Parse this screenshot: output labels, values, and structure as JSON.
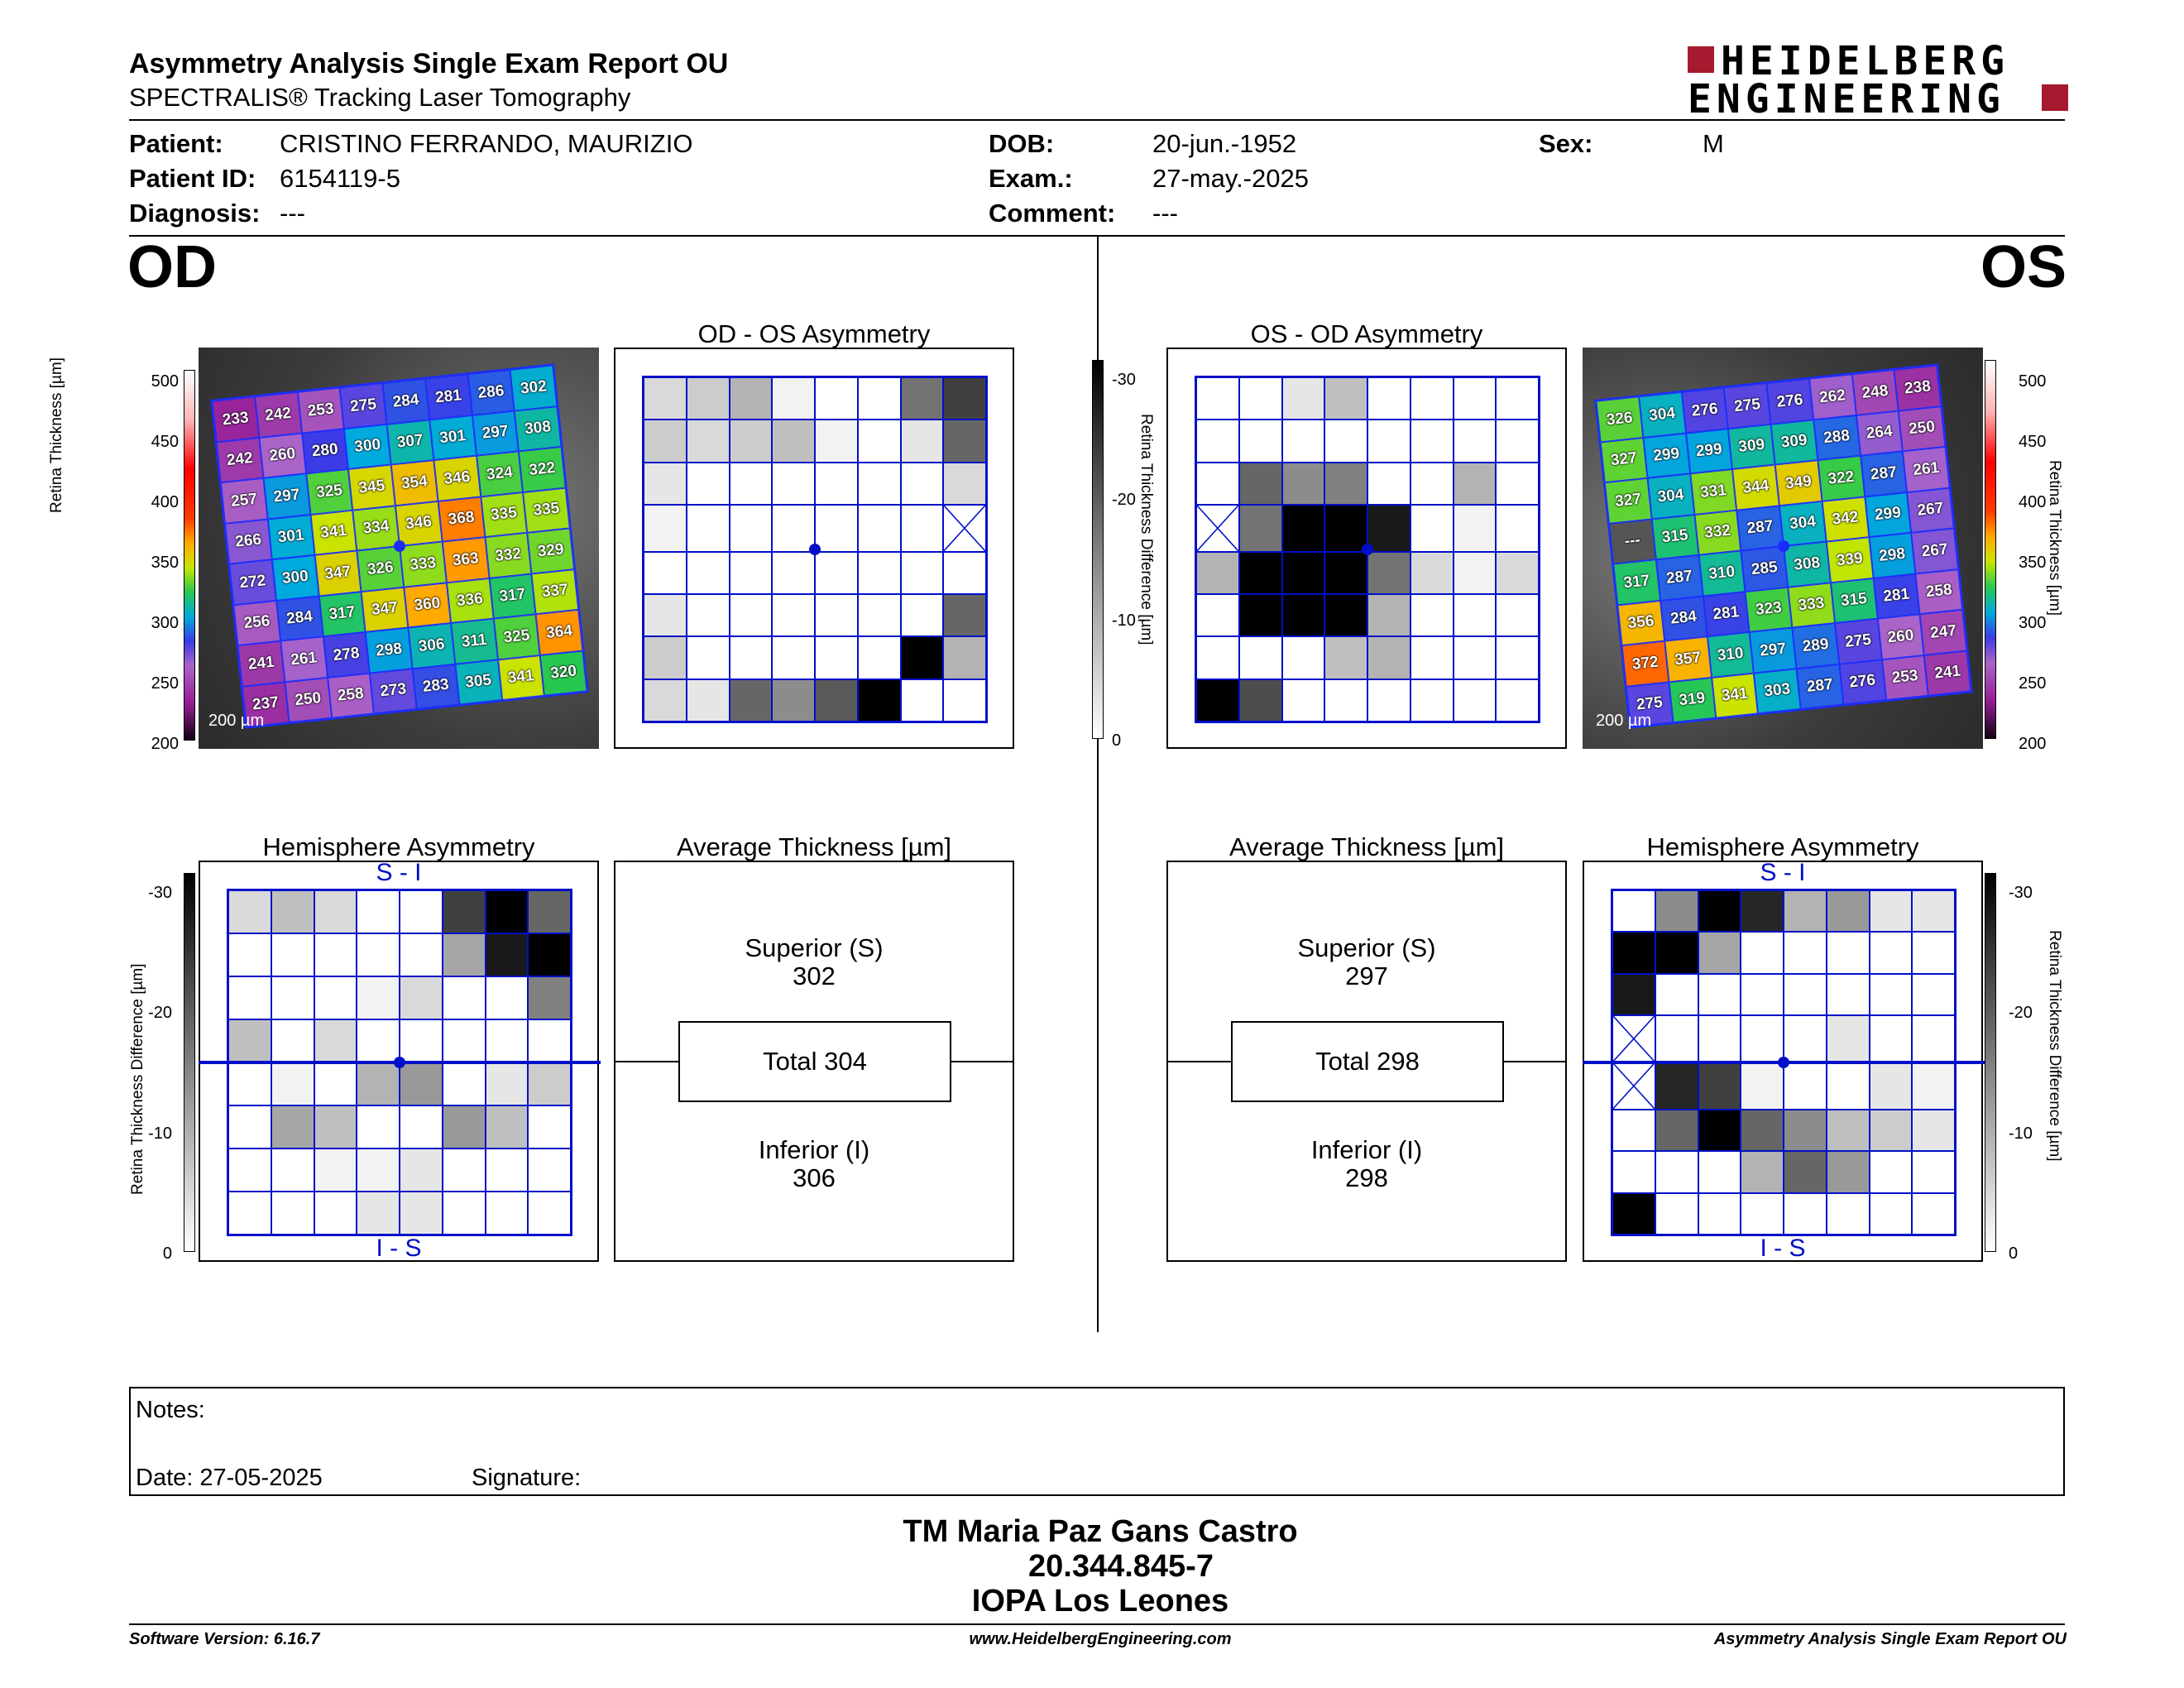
{
  "header": {
    "title": "Asymmetry Analysis Single Exam Report OU",
    "subtitle": "SPECTRALIS® Tracking Laser Tomography",
    "brand_line1": "HEIDELBERG",
    "brand_line2": "ENGINEERING"
  },
  "patient": {
    "patient_label": "Patient:",
    "patient_value": "CRISTINO FERRANDO, MAURIZIO",
    "id_label": "Patient ID:",
    "id_value": "6154119-5",
    "diagnosis_label": "Diagnosis:",
    "diagnosis_value": "---",
    "dob_label": "DOB:",
    "dob_value": "20-jun.-1952",
    "exam_label": "Exam.:",
    "exam_value": "27-may.-2025",
    "comment_label": "Comment:",
    "comment_value": "---",
    "sex_label": "Sex:",
    "sex_value": "M"
  },
  "od": {
    "eye_label": "OD",
    "asym_title": "OD - OS Asymmetry",
    "hemi_title": "Hemisphere Asymmetry",
    "avg_title": "Average Thickness [µm]",
    "superior_label": "Superior (S)",
    "superior_value": "302",
    "total_label": "Total 304",
    "inferior_label": "Inferior (I)",
    "inferior_value": "306",
    "scale": "200 µm",
    "thickness": [
      [
        233,
        242,
        253,
        275,
        284,
        281,
        286,
        302
      ],
      [
        242,
        260,
        280,
        300,
        307,
        301,
        297,
        308
      ],
      [
        257,
        297,
        325,
        345,
        354,
        346,
        324,
        322
      ],
      [
        266,
        301,
        341,
        334,
        346,
        368,
        335,
        335
      ],
      [
        272,
        300,
        347,
        326,
        333,
        363,
        332,
        329
      ],
      [
        256,
        284,
        317,
        347,
        360,
        336,
        317,
        337
      ],
      [
        241,
        261,
        278,
        298,
        306,
        311,
        325,
        364
      ],
      [
        237,
        250,
        258,
        273,
        283,
        305,
        341,
        320
      ]
    ],
    "asym_gray": [
      [
        0.15,
        0.2,
        0.3,
        0.05,
        0,
        0,
        0.55,
        0.75
      ],
      [
        0.2,
        0.15,
        0.2,
        0.25,
        0.05,
        0,
        0.1,
        0.6
      ],
      [
        0.1,
        0,
        0,
        0,
        0,
        0,
        0,
        0.15
      ],
      [
        0.05,
        0,
        0,
        0,
        0,
        0,
        0,
        -1
      ],
      [
        0,
        0,
        0,
        0,
        0,
        0,
        0,
        0
      ],
      [
        0.1,
        0,
        0,
        0,
        0,
        0,
        0,
        0.6
      ],
      [
        0.2,
        0,
        0,
        0,
        0,
        0,
        1,
        0.3
      ],
      [
        0.15,
        0.1,
        0.6,
        0.45,
        0.65,
        1,
        0,
        0
      ]
    ],
    "hemi_gray": [
      [
        0.15,
        0.25,
        0.15,
        0,
        0,
        0.75,
        1,
        0.6
      ],
      [
        0,
        0,
        0,
        0,
        0,
        0.35,
        0.9,
        1
      ],
      [
        0,
        0,
        0,
        0.05,
        0.15,
        0,
        0,
        0.5
      ],
      [
        0.25,
        0,
        0.15,
        0,
        0,
        0,
        0,
        0
      ],
      [
        0,
        0.05,
        0,
        0.3,
        0.4,
        0,
        0.1,
        0.2
      ],
      [
        0,
        0.35,
        0.25,
        0,
        0,
        0.4,
        0.25,
        0
      ],
      [
        0,
        0,
        0.05,
        0.05,
        0.1,
        0,
        0,
        0
      ],
      [
        0,
        0,
        0,
        0.1,
        0.1,
        0,
        0,
        0
      ]
    ]
  },
  "os": {
    "eye_label": "OS",
    "asym_title": "OS - OD Asymmetry",
    "hemi_title": "Hemisphere Asymmetry",
    "avg_title": "Average Thickness [µm]",
    "superior_label": "Superior (S)",
    "superior_value": "297",
    "total_label": "Total 298",
    "inferior_label": "Inferior (I)",
    "inferior_value": "298",
    "scale": "200 µm",
    "thickness": [
      [
        326,
        304,
        276,
        275,
        276,
        262,
        248,
        238
      ],
      [
        327,
        299,
        299,
        309,
        309,
        288,
        264,
        250
      ],
      [
        327,
        304,
        331,
        344,
        349,
        322,
        287,
        261
      ],
      [
        "---",
        315,
        332,
        287,
        304,
        342,
        299,
        267
      ],
      [
        317,
        287,
        310,
        285,
        308,
        339,
        298,
        267
      ],
      [
        356,
        284,
        281,
        323,
        333,
        315,
        281,
        258
      ],
      [
        372,
        357,
        310,
        297,
        289,
        275,
        260,
        247
      ],
      [
        275,
        319,
        341,
        303,
        287,
        276,
        253,
        241
      ]
    ],
    "asym_gray": [
      [
        0,
        0,
        0.1,
        0.25,
        0,
        0,
        0,
        0
      ],
      [
        0,
        0,
        0,
        0,
        0,
        0,
        0,
        0
      ],
      [
        0,
        0.6,
        0.45,
        0.5,
        0,
        0,
        0.3,
        0
      ],
      [
        -1,
        0.55,
        1,
        1,
        0.9,
        0,
        0.05,
        0
      ],
      [
        0.3,
        1,
        1,
        1,
        0.55,
        0.15,
        0.05,
        0.15
      ],
      [
        0,
        1,
        1,
        1,
        0.3,
        0,
        0,
        0
      ],
      [
        0,
        0,
        0,
        0.25,
        0.3,
        0,
        0,
        0
      ],
      [
        1,
        0.7,
        0,
        0,
        0,
        0,
        0,
        0
      ]
    ],
    "hemi_gray": [
      [
        0,
        0.45,
        1,
        0.85,
        0.3,
        0.4,
        0.1,
        0.1
      ],
      [
        1,
        1,
        0.35,
        0,
        0,
        0,
        0,
        0
      ],
      [
        0.9,
        0,
        0,
        0,
        0,
        0,
        0,
        0
      ],
      [
        -1,
        0,
        0,
        0,
        0,
        0.1,
        0,
        0
      ],
      [
        -1,
        0.85,
        0.75,
        0.05,
        0,
        0,
        0.1,
        0.05
      ],
      [
        0,
        0.6,
        1,
        0.6,
        0.45,
        0.25,
        0.2,
        0.1
      ],
      [
        0,
        0,
        0,
        0.3,
        0.6,
        0.4,
        0,
        0
      ],
      [
        1,
        0,
        0,
        0,
        0,
        0,
        0,
        0
      ]
    ]
  },
  "axes": {
    "thickness_title": "Retina Thickness [µm]",
    "thickness_ticks": [
      "500",
      "450",
      "400",
      "350",
      "300",
      "250",
      "200"
    ],
    "diff_title": "Retina Thickness Difference [µm]",
    "diff_ticks": [
      "-30",
      "-20",
      "-10",
      "0"
    ],
    "hemi_top": "S - I",
    "hemi_bottom": "I - S"
  },
  "notes": {
    "notes_label": "Notes:",
    "date_label": "Date: 27-05-2025",
    "signature_label": "Signature:"
  },
  "signature_block": {
    "name": "TM Maria Paz Gans Castro",
    "rut": "20.344.845-7",
    "institution": "IOPA Los Leones"
  },
  "footer": {
    "software": "Software Version: 6.16.7",
    "website": "www.HeidelbergEngineering.com",
    "report": "Asymmetry Analysis Single Exam Report OU"
  },
  "colors": {
    "grid_blue": "#0010c8",
    "brand_red": "#a6192e"
  }
}
